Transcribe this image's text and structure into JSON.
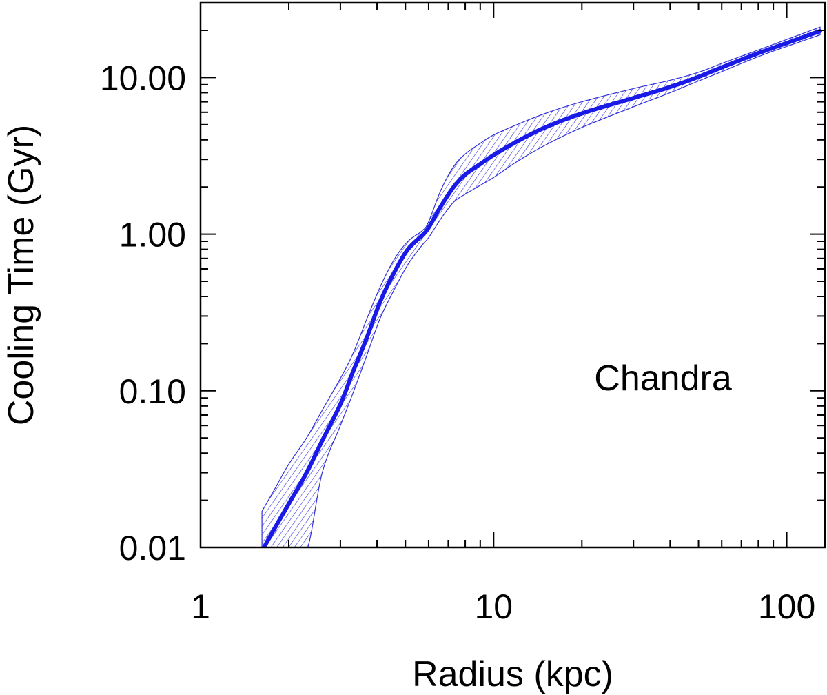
{
  "chart_data": {
    "type": "line",
    "xlabel": "Radius (kpc)",
    "ylabel": "Cooling Time (Gyr)",
    "xscale": "log",
    "yscale": "log",
    "xlim": [
      1,
      135
    ],
    "ylim": [
      0.01,
      30
    ],
    "x_ticks": [
      {
        "value": 1,
        "label": "1"
      },
      {
        "value": 10,
        "label": "10"
      },
      {
        "value": 100,
        "label": "100"
      }
    ],
    "y_ticks": [
      {
        "value": 0.01,
        "label": "0.01"
      },
      {
        "value": 0.1,
        "label": "0.10"
      },
      {
        "value": 1,
        "label": "1.00"
      },
      {
        "value": 10,
        "label": "10.00"
      }
    ],
    "annotation": "Chandra",
    "grid": false,
    "colors": {
      "line": "#1a1ae6",
      "band": "#3030dd",
      "axis": "#000000"
    },
    "series": [
      {
        "x": [
          1.62,
          1.8,
          2.0,
          2.3,
          2.6,
          3.0,
          3.3,
          3.7,
          4.1,
          4.6,
          5.1,
          5.7,
          6.0,
          6.6,
          7.3,
          8.0,
          9.0,
          10.0,
          12.0,
          15.0,
          20.0,
          30.0,
          40.0,
          50.0,
          60.0,
          80.0,
          100.0,
          130.0
        ],
        "y": [
          0.0095,
          0.0135,
          0.019,
          0.03,
          0.048,
          0.082,
          0.13,
          0.22,
          0.37,
          0.58,
          0.8,
          0.98,
          1.1,
          1.5,
          2.0,
          2.4,
          2.8,
          3.2,
          3.9,
          4.8,
          5.9,
          7.4,
          8.7,
          10.1,
          11.6,
          14.3,
          16.6,
          19.8
        ],
        "band_upper": [
          0.017,
          0.024,
          0.034,
          0.05,
          0.075,
          0.12,
          0.17,
          0.29,
          0.46,
          0.7,
          0.9,
          1.05,
          1.2,
          1.9,
          2.7,
          3.25,
          3.8,
          4.3,
          5.0,
          5.9,
          7.0,
          8.5,
          9.6,
          10.8,
          12.3,
          15.0,
          17.5,
          21.0
        ],
        "band_lower": [
          0.0095,
          0.0095,
          0.0095,
          0.0095,
          0.03,
          0.06,
          0.095,
          0.17,
          0.29,
          0.45,
          0.64,
          0.85,
          0.95,
          1.25,
          1.6,
          1.8,
          2.05,
          2.3,
          2.9,
          3.7,
          4.8,
          6.5,
          8.0,
          9.5,
          10.9,
          13.6,
          15.8,
          18.7
        ]
      }
    ]
  }
}
